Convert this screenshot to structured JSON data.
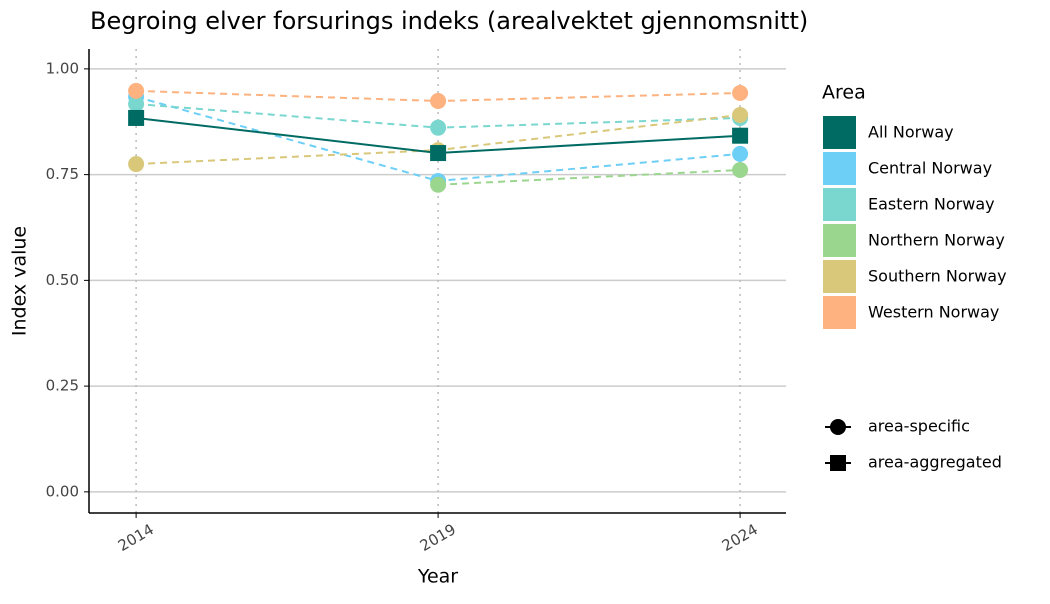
{
  "chart_data": {
    "type": "line",
    "title": "Begroing elver forsurings indeks (arealvektet gjennomsnitt)",
    "x_label": "Year",
    "y_label": "Index value",
    "x": [
      2014,
      2019,
      2024
    ],
    "xlim": [
      2013.22,
      2024.76
    ],
    "xticks": [
      2014,
      2019,
      2024
    ],
    "ylim": [
      -0.05,
      1.047
    ],
    "yticks": [
      {
        "value": 0,
        "label": "0.00"
      },
      {
        "value": 0.25,
        "label": "0.25"
      },
      {
        "value": 0.5,
        "label": "0.50"
      },
      {
        "value": 0.75,
        "label": "0.75"
      },
      {
        "value": 1,
        "label": "1.00"
      }
    ],
    "grid": true,
    "legend_title": "Area",
    "shape_legend": [
      {
        "name": "area-specific",
        "marker": "circle"
      },
      {
        "name": "area-aggregated",
        "marker": "square"
      }
    ],
    "series": [
      {
        "name": "All Norway",
        "color": "#006b63",
        "marker": "square",
        "dashed": false,
        "values": [
          0.884,
          0.801,
          0.842
        ]
      },
      {
        "name": "Central Norway",
        "color": "#6dcff6",
        "marker": "circle",
        "dashed": true,
        "values": [
          0.934,
          0.735,
          0.799
        ]
      },
      {
        "name": "Eastern Norway",
        "color": "#79d7cf",
        "marker": "circle",
        "dashed": true,
        "values": [
          0.917,
          0.861,
          0.884
        ]
      },
      {
        "name": "Northern Norway",
        "color": "#9bd68f",
        "marker": "circle",
        "dashed": true,
        "values": [
          null,
          0.726,
          0.761
        ]
      },
      {
        "name": "Southern Norway",
        "color": "#d9c77a",
        "marker": "circle",
        "dashed": true,
        "values": [
          0.775,
          0.808,
          0.891
        ]
      },
      {
        "name": "Western Norway",
        "color": "#fdb27f",
        "marker": "circle",
        "dashed": true,
        "values": [
          0.948,
          0.924,
          0.943
        ]
      }
    ]
  }
}
